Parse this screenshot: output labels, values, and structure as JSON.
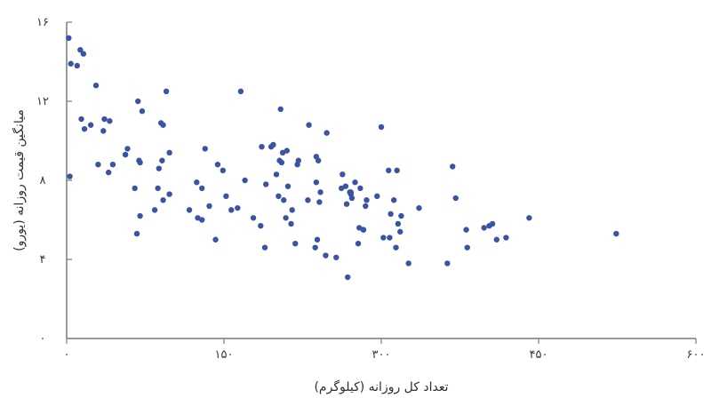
{
  "chart_data": {
    "type": "scatter",
    "xlabel": "تعداد کل روزانه (کیلوگرم)",
    "ylabel": "میانگین قیمت روزانه (یورو)",
    "xlim": [
      0,
      600
    ],
    "ylim": [
      0,
      16
    ],
    "x_ticks": [
      0,
      150,
      300,
      450,
      600
    ],
    "y_ticks": [
      0,
      4,
      8,
      12,
      16
    ],
    "x_tick_labels": [
      "۰",
      "۱۵۰",
      "۳۰۰",
      "۴۵۰",
      "۶۰۰"
    ],
    "y_tick_labels": [
      "۰",
      "۴",
      "۸",
      "۱۲",
      "۱۶"
    ],
    "grid": false,
    "legend": "none",
    "marker_color": "#3a53a4",
    "series": [
      {
        "points": [
          [
            2,
            15.2
          ],
          [
            3,
            8.2
          ],
          [
            4,
            13.9
          ],
          [
            10,
            13.8
          ],
          [
            13,
            14.6
          ],
          [
            14,
            11.1
          ],
          [
            16,
            14.4
          ],
          [
            17,
            10.6
          ],
          [
            23,
            10.8
          ],
          [
            28,
            12.8
          ],
          [
            30,
            8.8
          ],
          [
            35,
            10.5
          ],
          [
            36,
            11.1
          ],
          [
            40,
            8.4
          ],
          [
            41,
            11.0
          ],
          [
            44,
            8.8
          ],
          [
            56,
            9.3
          ],
          [
            58,
            9.6
          ],
          [
            65,
            7.6
          ],
          [
            67,
            5.3
          ],
          [
            68,
            12.0
          ],
          [
            69,
            9.0
          ],
          [
            70,
            6.2
          ],
          [
            70,
            8.9
          ],
          [
            72,
            11.5
          ],
          [
            84,
            6.5
          ],
          [
            87,
            7.6
          ],
          [
            88,
            8.6
          ],
          [
            90,
            10.9
          ],
          [
            91,
            9.0
          ],
          [
            92,
            7.0
          ],
          [
            92,
            10.8
          ],
          [
            95,
            12.5
          ],
          [
            98,
            9.4
          ],
          [
            98,
            7.3
          ],
          [
            117,
            6.5
          ],
          [
            124,
            7.9
          ],
          [
            125,
            6.1
          ],
          [
            129,
            6.0
          ],
          [
            129,
            7.6
          ],
          [
            132,
            9.6
          ],
          [
            136,
            6.7
          ],
          [
            142,
            5.0
          ],
          [
            144,
            8.8
          ],
          [
            149,
            8.5
          ],
          [
            152,
            7.2
          ],
          [
            157,
            6.5
          ],
          [
            163,
            6.6
          ],
          [
            166,
            12.5
          ],
          [
            170,
            8.0
          ],
          [
            178,
            6.1
          ],
          [
            185,
            5.7
          ],
          [
            186,
            9.7
          ],
          [
            189,
            4.6
          ],
          [
            190,
            7.8
          ],
          [
            195,
            9.7
          ],
          [
            197,
            9.8
          ],
          [
            200,
            8.3
          ],
          [
            202,
            7.2
          ],
          [
            203,
            9.0
          ],
          [
            204,
            11.6
          ],
          [
            205,
            8.9
          ],
          [
            206,
            9.4
          ],
          [
            207,
            7.0
          ],
          [
            209,
            6.1
          ],
          [
            210,
            9.5
          ],
          [
            211,
            7.7
          ],
          [
            214,
            5.8
          ],
          [
            215,
            6.5
          ],
          [
            218,
            4.8
          ],
          [
            220,
            8.8
          ],
          [
            221,
            9.0
          ],
          [
            230,
            7.0
          ],
          [
            231,
            10.8
          ],
          [
            237,
            4.6
          ],
          [
            238,
            9.2
          ],
          [
            238,
            7.9
          ],
          [
            239,
            5.0
          ],
          [
            240,
            9.0
          ],
          [
            241,
            6.9
          ],
          [
            242,
            7.4
          ],
          [
            247,
            4.2
          ],
          [
            248,
            10.4
          ],
          [
            257,
            4.1
          ],
          [
            262,
            7.6
          ],
          [
            263,
            8.3
          ],
          [
            266,
            7.7
          ],
          [
            267,
            6.8
          ],
          [
            268,
            3.1
          ],
          [
            270,
            7.4
          ],
          [
            271,
            7.3
          ],
          [
            271,
            7.4
          ],
          [
            272,
            7.1
          ],
          [
            275,
            7.9
          ],
          [
            278,
            4.8
          ],
          [
            279,
            5.6
          ],
          [
            280,
            7.6
          ],
          [
            283,
            5.5
          ],
          [
            283,
            5.5
          ],
          [
            285,
            6.7
          ],
          [
            286,
            7.0
          ],
          [
            296,
            7.2
          ],
          [
            300,
            10.7
          ],
          [
            302,
            5.1
          ],
          [
            307,
            8.5
          ],
          [
            308,
            5.1
          ],
          [
            309,
            6.3
          ],
          [
            312,
            7.0
          ],
          [
            314,
            4.6
          ],
          [
            315,
            8.5
          ],
          [
            316,
            5.8
          ],
          [
            318,
            5.4
          ],
          [
            319,
            6.2
          ],
          [
            326,
            3.8
          ],
          [
            336,
            6.6
          ],
          [
            363,
            3.8
          ],
          [
            368,
            8.7
          ],
          [
            371,
            7.1
          ],
          [
            381,
            5.5
          ],
          [
            382,
            4.6
          ],
          [
            398,
            5.6
          ],
          [
            403,
            5.7
          ],
          [
            406,
            5.8
          ],
          [
            410,
            5.0
          ],
          [
            419,
            5.1
          ],
          [
            441,
            6.1
          ],
          [
            524,
            5.3
          ]
        ]
      }
    ]
  }
}
